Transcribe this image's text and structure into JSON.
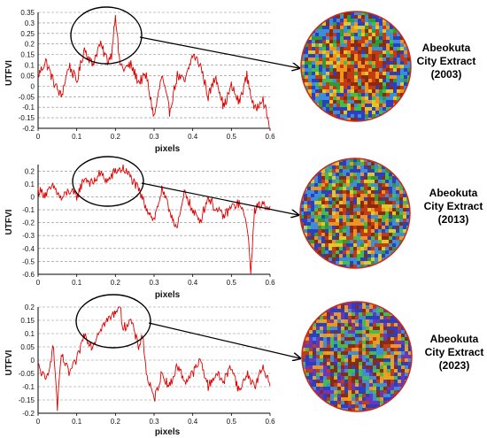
{
  "chart_data": [
    {
      "type": "line",
      "xlabel": "pixels",
      "ylabel": "UTFVI",
      "xlim": [
        0,
        0.6
      ],
      "ylim": [
        -0.2,
        0.35
      ],
      "xticks": [
        "0",
        "0.1",
        "0.2",
        "0.3",
        "0.4",
        "0.5",
        "0.6"
      ],
      "yticks": [
        "0.35",
        "0.3",
        "0.25",
        "0.2",
        "0.15",
        "0.1",
        "0.05",
        "0",
        "-0.05",
        "-0.1",
        "-0.15",
        "-0.2"
      ],
      "grid": "horizontal dashed",
      "line_color": "#e00000",
      "series": [
        {
          "x": [
            0,
            0.02,
            0.04,
            0.06,
            0.08,
            0.1,
            0.12,
            0.14,
            0.16,
            0.18,
            0.19,
            0.2,
            0.21,
            0.22,
            0.24,
            0.26,
            0.28,
            0.3,
            0.32,
            0.34,
            0.36,
            0.38,
            0.4,
            0.42,
            0.44,
            0.46,
            0.48,
            0.5,
            0.52,
            0.54,
            0.56,
            0.58,
            0.6
          ],
          "y": [
            0.05,
            0.12,
            0.02,
            -0.05,
            0.1,
            0.02,
            0.18,
            0.1,
            0.2,
            0.12,
            0.15,
            0.35,
            0.12,
            0.08,
            0.1,
            0.02,
            0.05,
            -0.15,
            0.05,
            -0.12,
            0.05,
            0.02,
            0.15,
            0.1,
            -0.05,
            0.05,
            -0.1,
            0.0,
            -0.08,
            0.05,
            -0.12,
            -0.05,
            -0.2
          ]
        }
      ],
      "annotation": {
        "title_lines": [
          "Abeokuta",
          "City Extract",
          "(2003)"
        ],
        "highlight_x": [
          0.1,
          0.24
        ]
      }
    },
    {
      "type": "line",
      "xlabel": "pixels",
      "ylabel": "UTFVI",
      "xlim": [
        0,
        0.6
      ],
      "ylim": [
        -0.6,
        0.25
      ],
      "xticks": [
        "0",
        "0.1",
        "0.2",
        "0.3",
        "0.4",
        "0.5",
        "0.6"
      ],
      "yticks": [
        "0.2",
        "0.1",
        "0",
        "-0.1",
        "-0.2",
        "-0.3",
        "-0.4",
        "-0.5",
        "-0.6"
      ],
      "grid": "horizontal dashed",
      "line_color": "#e00000",
      "series": [
        {
          "x": [
            0,
            0.02,
            0.04,
            0.06,
            0.08,
            0.1,
            0.12,
            0.14,
            0.16,
            0.18,
            0.2,
            0.22,
            0.24,
            0.26,
            0.28,
            0.3,
            0.32,
            0.34,
            0.36,
            0.38,
            0.4,
            0.42,
            0.44,
            0.46,
            0.48,
            0.5,
            0.52,
            0.54,
            0.55,
            0.56,
            0.58,
            0.6
          ],
          "y": [
            0.05,
            0.02,
            0.08,
            -0.02,
            0.05,
            0.0,
            0.15,
            0.1,
            0.18,
            0.12,
            0.2,
            0.22,
            0.15,
            0.05,
            -0.08,
            -0.18,
            0.05,
            -0.1,
            -0.25,
            0.05,
            -0.12,
            -0.18,
            0.0,
            -0.1,
            -0.15,
            -0.08,
            -0.05,
            -0.2,
            -0.58,
            -0.1,
            -0.05,
            -0.08
          ]
        }
      ],
      "annotation": {
        "title_lines": [
          "Abeokuta",
          "City Extract",
          "(2013)"
        ],
        "highlight_x": [
          0.1,
          0.26
        ]
      }
    },
    {
      "type": "line",
      "xlabel": "pixels",
      "ylabel": "UTFVI",
      "xlim": [
        0,
        0.6
      ],
      "ylim": [
        -0.2,
        0.2
      ],
      "xticks": [
        "0",
        "0.1",
        "0.2",
        "0.3",
        "0.4",
        "0.5",
        "0.6"
      ],
      "yticks": [
        "0.2",
        "0.15",
        "0.1",
        "0.05",
        "0",
        "-0.05",
        "-0.1",
        "-0.15",
        "-0.2"
      ],
      "grid": "horizontal dashed",
      "line_color": "#e00000",
      "series": [
        {
          "x": [
            0,
            0.02,
            0.04,
            0.05,
            0.06,
            0.08,
            0.1,
            0.12,
            0.14,
            0.16,
            0.18,
            0.2,
            0.21,
            0.22,
            0.24,
            0.26,
            0.27,
            0.28,
            0.3,
            0.32,
            0.34,
            0.36,
            0.38,
            0.4,
            0.42,
            0.44,
            0.46,
            0.48,
            0.5,
            0.52,
            0.54,
            0.56,
            0.58,
            0.6
          ],
          "y": [
            -0.02,
            -0.08,
            0.05,
            -0.18,
            0.02,
            -0.05,
            0.0,
            0.1,
            0.05,
            0.12,
            0.15,
            0.18,
            0.22,
            0.12,
            0.15,
            0.05,
            0.1,
            -0.05,
            -0.15,
            -0.05,
            -0.1,
            -0.02,
            -0.08,
            -0.05,
            0.0,
            -0.1,
            -0.05,
            -0.08,
            -0.02,
            -0.12,
            -0.05,
            -0.1,
            -0.03,
            -0.08
          ]
        }
      ],
      "annotation": {
        "title_lines": [
          "Abeokuta",
          "City Extract",
          "(2023)"
        ],
        "highlight_x": [
          0.11,
          0.28
        ]
      }
    }
  ],
  "maps": [
    {
      "name": "map-2003",
      "palette": [
        "#2f9a3a",
        "#3fbf4a",
        "#e0c825",
        "#f0941e",
        "#c43a14",
        "#8a2a10",
        "#3d8ed8",
        "#2a3fc4"
      ]
    },
    {
      "name": "map-2013",
      "palette": [
        "#3fbf4a",
        "#2f9a3a",
        "#e0c825",
        "#f0941e",
        "#c43a14",
        "#8a2a10",
        "#3d8ed8",
        "#2a3fc4"
      ]
    },
    {
      "name": "map-2023",
      "palette": [
        "#e0a820",
        "#f0941e",
        "#c43a14",
        "#8a2a10",
        "#3fbf4a",
        "#3d8ed8",
        "#2a3fc4",
        "#6a36c0"
      ]
    }
  ]
}
